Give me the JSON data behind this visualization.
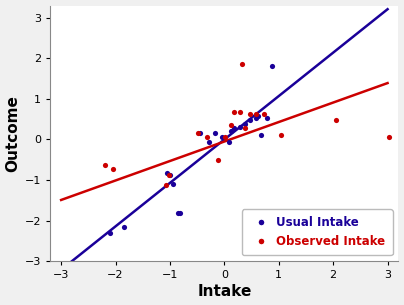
{
  "title": "",
  "xlabel": "Intake",
  "ylabel": "Outcome",
  "xlim": [
    -3.2,
    3.2
  ],
  "ylim": [
    -3.0,
    3.3
  ],
  "xticks": [
    -3,
    -2,
    -1,
    0,
    1,
    2,
    3
  ],
  "yticks": [
    -3,
    -2,
    -1,
    0,
    1,
    2,
    3
  ],
  "blue_line_slope": 1.07,
  "blue_line_intercept": 0.0,
  "red_line_slope": 0.48,
  "red_line_intercept": -0.05,
  "blue_color": "#1a0099",
  "red_color": "#cc0000",
  "blue_dots": [
    [
      -2.1,
      -2.3
    ],
    [
      -1.85,
      -2.15
    ],
    [
      -1.05,
      -0.82
    ],
    [
      -1.0,
      -0.88
    ],
    [
      -0.95,
      -1.1
    ],
    [
      -0.85,
      -1.82
    ],
    [
      -0.82,
      -1.82
    ],
    [
      -0.45,
      0.15
    ],
    [
      -0.28,
      -0.05
    ],
    [
      -0.18,
      0.15
    ],
    [
      -0.05,
      0.05
    ],
    [
      0.08,
      -0.05
    ],
    [
      0.12,
      0.22
    ],
    [
      0.18,
      0.28
    ],
    [
      0.28,
      0.32
    ],
    [
      0.38,
      0.38
    ],
    [
      0.48,
      0.48
    ],
    [
      0.58,
      0.52
    ],
    [
      0.62,
      0.58
    ],
    [
      0.68,
      0.1
    ],
    [
      0.78,
      0.52
    ],
    [
      0.88,
      1.82
    ]
  ],
  "red_dots": [
    [
      -2.2,
      -0.62
    ],
    [
      -2.05,
      -0.72
    ],
    [
      -1.08,
      -1.12
    ],
    [
      -1.02,
      -0.88
    ],
    [
      -0.48,
      0.15
    ],
    [
      -0.32,
      0.05
    ],
    [
      -0.12,
      -0.5
    ],
    [
      0.02,
      0.05
    ],
    [
      0.12,
      0.35
    ],
    [
      0.18,
      0.68
    ],
    [
      0.28,
      0.68
    ],
    [
      0.32,
      1.85
    ],
    [
      0.38,
      0.28
    ],
    [
      0.48,
      0.62
    ],
    [
      0.58,
      0.62
    ],
    [
      0.72,
      0.62
    ],
    [
      1.05,
      0.12
    ],
    [
      2.05,
      0.48
    ],
    [
      3.02,
      0.05
    ]
  ],
  "legend_fontsize": 8.5,
  "bg_color": "#ffffff",
  "fig_bg_color": "#f0f0f0",
  "spine_color": "#888888"
}
